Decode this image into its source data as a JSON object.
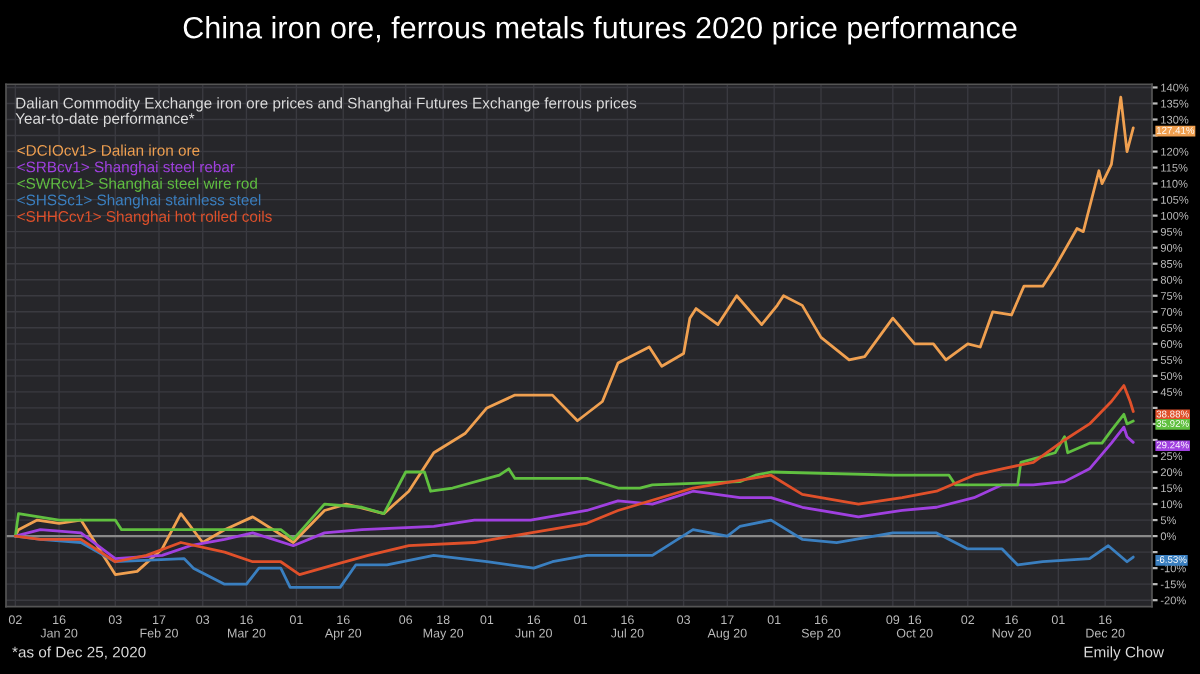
{
  "chart_data": {
    "type": "line",
    "title": "China iron ore, ferrous metals futures 2020 price performance",
    "subtitle": "Dalian Commodity Exchange iron ore prices and Shanghai Futures Exchange ferrous prices\nYear-to-date performance*",
    "series": [
      {
        "name": "<DCIOcv1> Dalian iron ore",
        "color": "#f0a050",
        "x": [
          "2020-01-02",
          "2020-01-03",
          "2020-01-09",
          "2020-01-16",
          "2020-01-23",
          "2020-02-03",
          "2020-02-10",
          "2020-02-18",
          "2020-02-24",
          "2020-03-02",
          "2020-03-09",
          "2020-03-18",
          "2020-03-31",
          "2020-04-10",
          "2020-04-17",
          "2020-04-29",
          "2020-05-07",
          "2020-05-15",
          "2020-05-25",
          "2020-06-01",
          "2020-06-10",
          "2020-06-22",
          "2020-06-30",
          "2020-07-08",
          "2020-07-13",
          "2020-07-23",
          "2020-07-27",
          "2020-08-03",
          "2020-08-05",
          "2020-08-07",
          "2020-08-14",
          "2020-08-20",
          "2020-08-28",
          "2020-09-02",
          "2020-09-04",
          "2020-09-10",
          "2020-09-16",
          "2020-09-25",
          "2020-09-30",
          "2020-10-09",
          "2020-10-16",
          "2020-10-22",
          "2020-10-26",
          "2020-11-02",
          "2020-11-06",
          "2020-11-10",
          "2020-11-16",
          "2020-11-20",
          "2020-11-26",
          "2020-11-30",
          "2020-12-07",
          "2020-12-09",
          "2020-12-14",
          "2020-12-15",
          "2020-12-18",
          "2020-12-21",
          "2020-12-23",
          "2020-12-25"
        ],
        "values": [
          0,
          2,
          5,
          4,
          5,
          -12,
          -11,
          -4,
          7,
          -2,
          2,
          6,
          -2,
          8,
          10,
          7,
          14,
          26,
          32,
          40,
          44,
          44,
          36,
          42,
          54,
          59,
          53,
          57,
          68,
          71,
          66,
          75,
          66,
          72,
          75,
          72,
          62,
          55,
          56,
          68,
          60,
          60,
          55,
          60,
          59,
          70,
          69,
          78,
          78,
          84,
          96,
          95,
          114,
          110,
          116,
          137,
          120,
          127.41
        ]
      },
      {
        "name": "<SRBcv1> Shanghai steel rebar",
        "color": "#a040e0",
        "x": [
          "2020-01-02",
          "2020-01-10",
          "2020-01-23",
          "2020-02-03",
          "2020-02-18",
          "2020-02-27",
          "2020-03-09",
          "2020-03-18",
          "2020-03-31",
          "2020-04-10",
          "2020-04-22",
          "2020-05-15",
          "2020-05-28",
          "2020-06-15",
          "2020-07-03",
          "2020-07-13",
          "2020-07-24",
          "2020-08-06",
          "2020-08-21",
          "2020-08-31",
          "2020-09-10",
          "2020-09-28",
          "2020-10-12",
          "2020-10-23",
          "2020-11-04",
          "2020-11-13",
          "2020-11-23",
          "2020-12-03",
          "2020-12-11",
          "2020-12-18",
          "2020-12-22",
          "2020-12-23",
          "2020-12-25"
        ],
        "values": [
          0,
          2,
          1,
          -7,
          -6,
          -3,
          -1,
          1,
          -3,
          1,
          2,
          3,
          5,
          5,
          8,
          11,
          10,
          14,
          12,
          12,
          9,
          6,
          8,
          9,
          12,
          16,
          16,
          17,
          21,
          29,
          34,
          31,
          29.24
        ]
      },
      {
        "name": "<SWRcv1> Shanghai steel wire rod",
        "color": "#60c040",
        "x": [
          "2020-01-02",
          "2020-01-03",
          "2020-01-16",
          "2020-02-03",
          "2020-02-05",
          "2020-03-27",
          "2020-03-31",
          "2020-04-10",
          "2020-04-22",
          "2020-04-29",
          "2020-05-06",
          "2020-05-12",
          "2020-05-14",
          "2020-05-21",
          "2020-06-05",
          "2020-06-08",
          "2020-06-10",
          "2020-07-03",
          "2020-07-13",
          "2020-07-20",
          "2020-07-24",
          "2020-08-21",
          "2020-08-26",
          "2020-08-31",
          "2020-10-09",
          "2020-10-27",
          "2020-10-29",
          "2020-11-18",
          "2020-11-19",
          "2020-11-30",
          "2020-12-03",
          "2020-12-04",
          "2020-12-11",
          "2020-12-15",
          "2020-12-18",
          "2020-12-22",
          "2020-12-23",
          "2020-12-25"
        ],
        "values": [
          0,
          7,
          5,
          5,
          2,
          2,
          -1,
          10,
          9,
          7,
          20,
          20,
          14,
          15,
          19,
          21,
          18,
          18,
          15,
          15,
          16,
          17,
          19,
          20,
          19,
          19,
          16,
          16,
          23,
          26,
          31,
          26,
          29,
          29,
          33,
          38,
          35,
          35.92
        ]
      },
      {
        "name": "<SHSSc1> Shanghai stainless steel",
        "color": "#3a7fc0",
        "x": [
          "2020-01-02",
          "2020-01-10",
          "2020-01-23",
          "2020-02-03",
          "2020-02-25",
          "2020-02-28",
          "2020-03-09",
          "2020-03-16",
          "2020-03-20",
          "2020-03-27",
          "2020-03-30",
          "2020-04-15",
          "2020-04-20",
          "2020-04-30",
          "2020-05-15",
          "2020-06-01",
          "2020-06-16",
          "2020-06-22",
          "2020-07-03",
          "2020-07-13",
          "2020-07-24",
          "2020-08-06",
          "2020-08-17",
          "2020-08-21",
          "2020-08-31",
          "2020-09-10",
          "2020-09-21",
          "2020-10-09",
          "2020-10-23",
          "2020-11-02",
          "2020-11-13",
          "2020-11-18",
          "2020-11-26",
          "2020-12-11",
          "2020-12-17",
          "2020-12-23",
          "2020-12-25"
        ],
        "values": [
          0,
          -1,
          -2,
          -8,
          -7,
          -10,
          -15,
          -15,
          -10,
          -10,
          -16,
          -16,
          -9,
          -9,
          -6,
          -8,
          -10,
          -8,
          -6,
          -6,
          -6,
          2,
          0,
          3,
          5,
          -1,
          -2,
          1,
          1,
          -4,
          -4,
          -9,
          -8,
          -7,
          -3,
          -8,
          -6.53
        ]
      },
      {
        "name": "<SHHCcv1> Shanghai hot rolled coils",
        "color": "#e0502a",
        "x": [
          "2020-01-02",
          "2020-01-10",
          "2020-01-23",
          "2020-02-03",
          "2020-02-13",
          "2020-02-24",
          "2020-03-09",
          "2020-03-18",
          "2020-03-27",
          "2020-04-02",
          "2020-04-13",
          "2020-04-24",
          "2020-05-07",
          "2020-05-28",
          "2020-06-15",
          "2020-07-03",
          "2020-07-13",
          "2020-08-06",
          "2020-08-31",
          "2020-09-10",
          "2020-09-28",
          "2020-10-12",
          "2020-10-23",
          "2020-11-04",
          "2020-11-13",
          "2020-11-23",
          "2020-12-03",
          "2020-12-11",
          "2020-12-18",
          "2020-12-22",
          "2020-12-24",
          "2020-12-25"
        ],
        "values": [
          0,
          -1,
          -1,
          -8,
          -6,
          -2,
          -5,
          -8,
          -8,
          -12,
          -9,
          -6,
          -3,
          -2,
          1,
          4,
          8,
          15,
          19,
          13,
          10,
          12,
          14,
          19,
          21,
          23,
          30,
          35,
          42,
          47,
          42,
          38.88
        ]
      }
    ],
    "annotations": [
      {
        "text": "127.41%",
        "x": "2020-12-25",
        "y": 127.41
      },
      {
        "text": "38.88%",
        "x": "2020-12-25",
        "y": 38.88
      },
      {
        "text": "35.92%",
        "x": "2020-12-25",
        "y": 35.92
      },
      {
        "text": "29.24%",
        "x": "2020-12-25",
        "y": 29.24
      },
      {
        "text": "-6.53%",
        "x": "2020-12-25",
        "y": -6.53
      },
      "*as of Dec 25, 2020",
      "Emily Chow"
    ],
    "xlim": [
      "2019-12-30",
      "2020-12-31"
    ],
    "xticks": [
      {
        "value": "2020-01-02",
        "label": "02"
      },
      {
        "value": "2020-01-16",
        "label": "16\nJan 20"
      },
      {
        "value": "2020-02-03",
        "label": "03"
      },
      {
        "value": "2020-02-17",
        "label": "17\nFeb 20"
      },
      {
        "value": "2020-03-02",
        "label": "03"
      },
      {
        "value": "2020-03-16",
        "label": "16\nMar 20"
      },
      {
        "value": "2020-04-01",
        "label": "01"
      },
      {
        "value": "2020-04-16",
        "label": "16\nApr 20"
      },
      {
        "value": "2020-05-06",
        "label": "06"
      },
      {
        "value": "2020-05-18",
        "label": "18\nMay 20"
      },
      {
        "value": "2020-06-01",
        "label": "01"
      },
      {
        "value": "2020-06-16",
        "label": "16\nJun 20"
      },
      {
        "value": "2020-07-01",
        "label": "01"
      },
      {
        "value": "2020-07-16",
        "label": "16\nJul 20"
      },
      {
        "value": "2020-08-03",
        "label": "03"
      },
      {
        "value": "2020-08-17",
        "label": "17\nAug 20"
      },
      {
        "value": "2020-09-01",
        "label": "01"
      },
      {
        "value": "2020-09-16",
        "label": "16\nSep 20"
      },
      {
        "value": "2020-10-09",
        "label": "09"
      },
      {
        "value": "2020-10-16",
        "label": "16\nOct 20"
      },
      {
        "value": "2020-11-02",
        "label": "02"
      },
      {
        "value": "2020-11-16",
        "label": "16\nNov 20"
      },
      {
        "value": "2020-12-01",
        "label": "01"
      },
      {
        "value": "2020-12-16",
        "label": "16\nDec 20"
      }
    ],
    "ylim": [
      -22,
      141
    ],
    "yticks": [
      {
        "value": -20,
        "label": "-20%"
      },
      {
        "value": -15,
        "label": "-15%"
      },
      {
        "value": -10,
        "label": "-10%"
      },
      {
        "value": -5,
        "label": null
      },
      {
        "value": 0,
        "label": "0%"
      },
      {
        "value": 5,
        "label": "5%"
      },
      {
        "value": 10,
        "label": "10%"
      },
      {
        "value": 15,
        "label": "15%"
      },
      {
        "value": 20,
        "label": "20%"
      },
      {
        "value": 25,
        "label": "25%"
      },
      {
        "value": 30,
        "label": null
      },
      {
        "value": 35,
        "label": null
      },
      {
        "value": 40,
        "label": null
      },
      {
        "value": 45,
        "label": "45%"
      },
      {
        "value": 50,
        "label": "50%"
      },
      {
        "value": 55,
        "label": "55%"
      },
      {
        "value": 60,
        "label": "60%"
      },
      {
        "value": 65,
        "label": "65%"
      },
      {
        "value": 70,
        "label": "70%"
      },
      {
        "value": 75,
        "label": "75%"
      },
      {
        "value": 80,
        "label": "80%"
      },
      {
        "value": 85,
        "label": "85%"
      },
      {
        "value": 90,
        "label": "90%"
      },
      {
        "value": 95,
        "label": "95%"
      },
      {
        "value": 100,
        "label": "100%"
      },
      {
        "value": 105,
        "label": "105%"
      },
      {
        "value": 110,
        "label": "110%"
      },
      {
        "value": 115,
        "label": "115%"
      },
      {
        "value": 120,
        "label": "120%"
      },
      {
        "value": 125,
        "label": null
      },
      {
        "value": 130,
        "label": "130%"
      },
      {
        "value": 135,
        "label": "135%"
      },
      {
        "value": 140,
        "label": "140%"
      }
    ],
    "ref_lines": [
      {
        "axis": "y",
        "value": 0,
        "color": "#8a8a8a"
      }
    ],
    "grid": true,
    "legend": "top left",
    "marker": "none",
    "line_style": "solid"
  }
}
